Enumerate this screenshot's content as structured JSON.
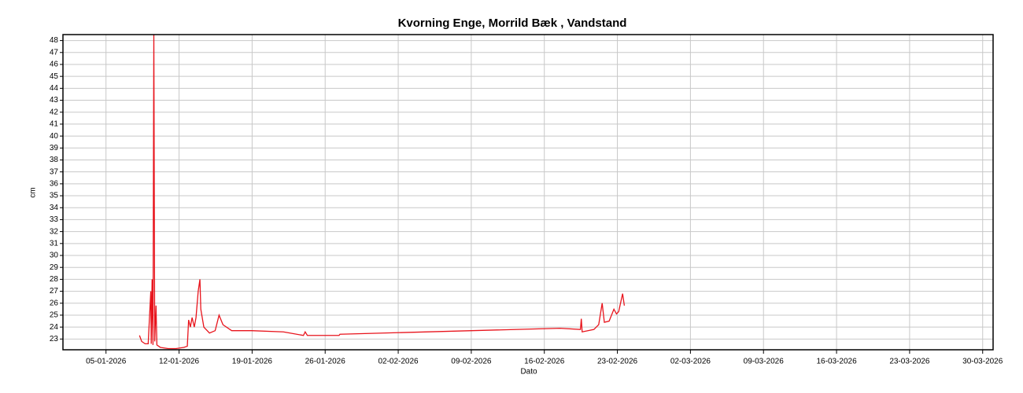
{
  "chart_data": {
    "type": "line",
    "title": "Kvorning Enge, Morrild Bæk , Vandstand",
    "x_label": "Dato",
    "y_label": "cm",
    "x": [
      "2026-01-08T05:00",
      "2026-01-08T10:00",
      "2026-01-08T18:00",
      "2026-01-09T01:00",
      "2026-01-09T07:00",
      "2026-01-09T08:00",
      "2026-01-09T10:00",
      "2026-01-09T12:00",
      "2026-01-09T14:00",
      "2026-01-09T16:00",
      "2026-01-09T19:00",
      "2026-01-09T21:00",
      "2026-01-10T05:00",
      "2026-01-10T23:00",
      "2026-01-11T17:00",
      "2026-01-12T11:00",
      "2026-01-12T19:00",
      "2026-01-12T22:00",
      "2026-01-13T02:00",
      "2026-01-13T06:00",
      "2026-01-13T11:00",
      "2026-01-13T15:00",
      "2026-01-13T20:00",
      "2026-01-14T00:00",
      "2026-01-14T02:00",
      "2026-01-14T09:00",
      "2026-01-14T22:00",
      "2026-01-15T11:00",
      "2026-01-15T20:00",
      "2026-01-16T05:00",
      "2026-01-17T01:00",
      "2026-01-18T23:00",
      "2026-01-22T00:00",
      "2026-01-23T22:00",
      "2026-01-24T02:00",
      "2026-01-24T07:00",
      "2026-01-27T08:00",
      "2026-01-27T10:00",
      "2026-02-17T12:00",
      "2026-02-19T11:00",
      "2026-02-19T13:00",
      "2026-02-19T15:00",
      "2026-02-20T18:00",
      "2026-02-21T05:00",
      "2026-02-21T13:00",
      "2026-02-21T18:00",
      "2026-02-22T05:00",
      "2026-02-22T16:00",
      "2026-02-22T22:00",
      "2026-02-23T03:00",
      "2026-02-23T12:00",
      "2026-02-23T16:00"
    ],
    "series": [
      {
        "color": "#e8141c",
        "values": [
          23.3,
          22.8,
          22.6,
          22.6,
          27,
          22.6,
          28,
          22.5,
          48.5,
          22.8,
          25.8,
          22.5,
          22.3,
          22.2,
          22.2,
          22.3,
          22.4,
          24.6,
          24,
          24.8,
          24,
          24.8,
          27,
          28,
          25.5,
          24,
          23.5,
          23.7,
          25,
          24.2,
          23.7,
          23.7,
          23.6,
          23.3,
          23.6,
          23.3,
          23.3,
          23.4,
          23.9,
          23.8,
          24.7,
          23.6,
          23.8,
          24.2,
          26,
          24.4,
          24.5,
          25.5,
          25.1,
          25.3,
          26.8,
          25.8
        ]
      }
    ],
    "xlim": [
      "2025-12-31T21:00",
      "2026-03-31T00:00"
    ],
    "xticks": [
      {
        "value": "2026-01-05",
        "label": "05-01-2026"
      },
      {
        "value": "2026-01-12",
        "label": "12-01-2026"
      },
      {
        "value": "2026-01-19",
        "label": "19-01-2026"
      },
      {
        "value": "2026-01-26",
        "label": "26-01-2026"
      },
      {
        "value": "2026-02-02",
        "label": "02-02-2026"
      },
      {
        "value": "2026-02-09",
        "label": "09-02-2026"
      },
      {
        "value": "2026-02-16",
        "label": "16-02-2026"
      },
      {
        "value": "2026-02-23",
        "label": "23-02-2026"
      },
      {
        "value": "2026-03-02",
        "label": "02-03-2026"
      },
      {
        "value": "2026-03-09",
        "label": "09-03-2026"
      },
      {
        "value": "2026-03-16",
        "label": "16-03-2026"
      },
      {
        "value": "2026-03-23",
        "label": "23-03-2026"
      },
      {
        "value": "2026-03-30",
        "label": "30-03-2026"
      }
    ],
    "ylim": [
      22.1,
      48.5
    ],
    "yticks": [
      23,
      24,
      25,
      26,
      27,
      28,
      29,
      30,
      31,
      32,
      33,
      34,
      35,
      36,
      37,
      38,
      39,
      40,
      41,
      42,
      43,
      44,
      45,
      46,
      47,
      48
    ],
    "grid": true
  }
}
